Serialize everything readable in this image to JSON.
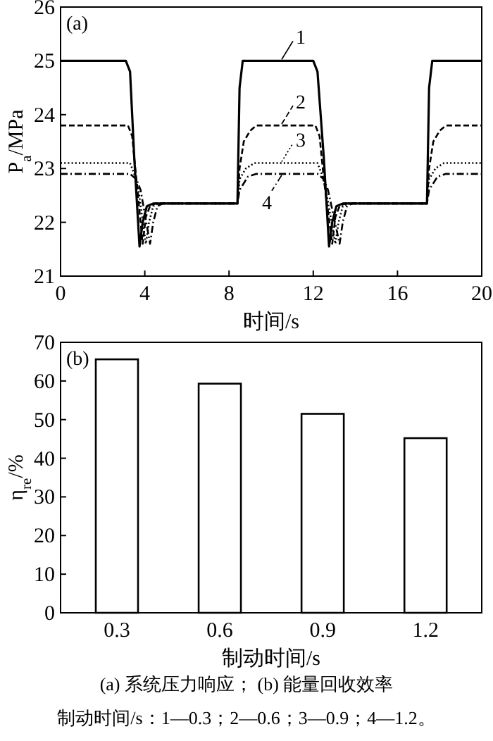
{
  "chart_data": [
    {
      "type": "line",
      "title": "(a)",
      "xlabel": "时间/s",
      "ylabel": "P$_{a}$/MPa",
      "xlim": [
        0,
        20
      ],
      "xticks": [
        0,
        4,
        8,
        12,
        16,
        20
      ],
      "ylim": [
        21,
        26
      ],
      "yticks": [
        21,
        22,
        23,
        24,
        25,
        26
      ],
      "legend": "top",
      "series": [
        {
          "name": "1",
          "color": "#000000",
          "line_style": "solid",
          "x": [
            0,
            3.1,
            3.3,
            3.5,
            3.75,
            3.9,
            4.1,
            4.4,
            8.4,
            8.5,
            8.65,
            12.0,
            12.2,
            12.5,
            12.75,
            12.9,
            13.1,
            13.4,
            17.4,
            17.5,
            17.65,
            20
          ],
          "values": [
            25,
            25,
            24.8,
            23.2,
            21.55,
            22.0,
            22.3,
            22.35,
            22.35,
            24.5,
            25,
            25,
            24.8,
            23.2,
            21.55,
            22.0,
            22.3,
            22.35,
            22.35,
            24.5,
            25,
            25
          ]
        },
        {
          "name": "2",
          "color": "#000000",
          "line_style": "dashed",
          "x": [
            0,
            3.2,
            3.4,
            3.6,
            3.9,
            4.05,
            4.25,
            4.5,
            8.4,
            8.5,
            8.7,
            9.0,
            9.3,
            12.1,
            12.3,
            12.5,
            12.9,
            13.05,
            13.25,
            13.5,
            17.4,
            17.5,
            17.7,
            18.0,
            18.3,
            20
          ],
          "values": [
            23.8,
            23.8,
            23.6,
            22.8,
            21.6,
            22.1,
            22.3,
            22.35,
            22.35,
            23.0,
            23.5,
            23.7,
            23.8,
            23.8,
            23.6,
            22.8,
            21.6,
            22.1,
            22.3,
            22.35,
            22.35,
            23.0,
            23.5,
            23.7,
            23.8,
            23.8
          ]
        },
        {
          "name": "3",
          "color": "#000000",
          "line_style": "dotted",
          "x": [
            0,
            3.3,
            3.5,
            3.7,
            4.05,
            4.2,
            4.4,
            4.65,
            8.4,
            8.5,
            8.8,
            9.2,
            12.2,
            12.4,
            12.6,
            13.05,
            13.2,
            13.4,
            13.65,
            17.4,
            17.5,
            17.8,
            18.2,
            20
          ],
          "values": [
            23.1,
            23.1,
            22.9,
            22.6,
            21.6,
            22.0,
            22.3,
            22.35,
            22.35,
            22.8,
            23.0,
            23.1,
            23.1,
            22.9,
            22.6,
            21.6,
            22.0,
            22.3,
            22.35,
            22.35,
            22.8,
            23.0,
            23.1,
            23.1
          ]
        },
        {
          "name": "4",
          "color": "#000000",
          "line_style": "dashdot",
          "x": [
            0,
            3.3,
            3.6,
            3.8,
            4.25,
            4.4,
            4.6,
            4.85,
            8.4,
            8.5,
            8.9,
            9.3,
            12.2,
            12.5,
            12.7,
            13.25,
            13.4,
            13.6,
            13.85,
            17.4,
            17.5,
            17.9,
            18.3,
            20
          ],
          "values": [
            22.9,
            22.9,
            22.8,
            22.6,
            21.6,
            22.0,
            22.3,
            22.35,
            22.35,
            22.6,
            22.85,
            22.9,
            22.9,
            22.8,
            22.6,
            21.6,
            22.0,
            22.3,
            22.35,
            22.35,
            22.6,
            22.85,
            22.9,
            22.9
          ]
        }
      ]
    },
    {
      "type": "bar",
      "title": "(b)",
      "xlabel": "制动时间/s",
      "ylabel": "η$_{re}$/%",
      "categories": [
        "0.3",
        "0.6",
        "0.9",
        "1.2"
      ],
      "values": [
        65.6,
        59.3,
        51.5,
        45.2
      ],
      "color": "#ffffff",
      "ylim": [
        0,
        70
      ],
      "yticks": [
        0,
        10,
        20,
        30,
        40,
        50,
        60,
        70
      ],
      "annotations": [
        "(a) 系统压力响应；  (b) 能量回收效率",
        "制动时间/s：1—0.3；2—0.6；3—0.9；4—1.2。"
      ]
    }
  ]
}
